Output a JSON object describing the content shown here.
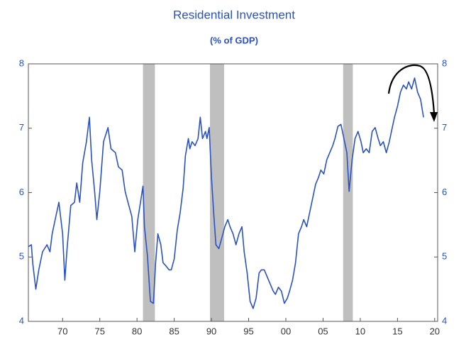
{
  "chart_data": {
    "type": "line",
    "title": "Residential Investment",
    "subtitle": "(% of GDP)",
    "color": "#2a52c4",
    "shade_color": "#bfbfbf",
    "shaded_periods": [
      [
        1980.8,
        1982.4
      ],
      [
        1989.8,
        1991.7
      ],
      [
        2007.7,
        2009.0
      ]
    ],
    "x": [
      1965.4,
      1965.8,
      1966.0,
      1966.4,
      1966.8,
      1967.3,
      1967.9,
      1968.3,
      1968.6,
      1969.0,
      1969.5,
      1970.0,
      1970.3,
      1970.6,
      1971.1,
      1971.6,
      1971.9,
      1972.3,
      1972.7,
      1973.2,
      1973.6,
      1973.9,
      1974.3,
      1974.6,
      1975.0,
      1975.5,
      1976.1,
      1976.5,
      1977.1,
      1977.5,
      1978.0,
      1978.4,
      1978.9,
      1979.3,
      1979.7,
      1980.1,
      1980.4,
      1980.8,
      1981.0,
      1981.4,
      1981.8,
      1982.2,
      1982.5,
      1982.8,
      1983.2,
      1983.5,
      1983.9,
      1984.3,
      1984.6,
      1985.0,
      1985.4,
      1985.8,
      1986.2,
      1986.5,
      1986.9,
      1987.1,
      1987.4,
      1987.8,
      1988.2,
      1988.5,
      1988.8,
      1989.2,
      1989.4,
      1989.7,
      1990.0,
      1990.3,
      1990.6,
      1991.0,
      1991.4,
      1991.8,
      1992.2,
      1992.5,
      1992.9,
      1993.3,
      1993.7,
      1994.1,
      1994.4,
      1994.8,
      1995.2,
      1995.6,
      1996.0,
      1996.4,
      1996.7,
      1997.1,
      1997.5,
      1997.9,
      1998.3,
      1998.6,
      1999.0,
      1999.4,
      1999.8,
      2000.2,
      2000.5,
      2000.9,
      2001.3,
      2001.7,
      2002.1,
      2002.4,
      2002.8,
      2003.2,
      2003.6,
      2004.0,
      2004.4,
      2004.7,
      2005.1,
      2005.5,
      2005.9,
      2006.3,
      2006.6,
      2007.0,
      2007.4,
      2007.8,
      2008.2,
      2008.5,
      2008.9,
      2009.3,
      2009.7,
      2010.1,
      2010.4,
      2010.8,
      2011.2,
      2011.6,
      2012.0,
      2012.4,
      2012.7,
      2013.1,
      2013.5,
      2013.9,
      2014.3,
      2014.6,
      2015.0,
      2015.4,
      2015.8,
      2016.2,
      2016.5,
      2016.9,
      2017.3,
      2017.7,
      2018.1,
      2018.5
    ],
    "values": [
      5.16,
      5.19,
      4.89,
      4.5,
      4.8,
      5.08,
      5.19,
      5.08,
      5.36,
      5.58,
      5.85,
      5.36,
      4.64,
      5.13,
      5.8,
      5.85,
      6.15,
      5.85,
      6.46,
      6.79,
      7.17,
      6.51,
      6.02,
      5.58,
      6.02,
      6.79,
      7.01,
      6.68,
      6.62,
      6.4,
      6.35,
      6.02,
      5.8,
      5.63,
      5.08,
      5.58,
      5.8,
      6.1,
      5.47,
      5.02,
      4.31,
      4.28,
      4.91,
      5.36,
      5.19,
      4.91,
      4.86,
      4.8,
      4.8,
      4.97,
      5.41,
      5.69,
      6.07,
      6.57,
      6.84,
      6.68,
      6.79,
      6.73,
      6.84,
      7.17,
      6.84,
      6.95,
      6.84,
      7.01,
      6.24,
      5.69,
      5.19,
      5.13,
      5.3,
      5.47,
      5.58,
      5.47,
      5.36,
      5.19,
      5.36,
      5.47,
      5.08,
      4.75,
      4.31,
      4.2,
      4.36,
      4.75,
      4.8,
      4.8,
      4.69,
      4.58,
      4.47,
      4.42,
      4.53,
      4.47,
      4.28,
      4.36,
      4.47,
      4.64,
      4.91,
      5.36,
      5.47,
      5.58,
      5.47,
      5.69,
      5.91,
      6.13,
      6.24,
      6.35,
      6.29,
      6.51,
      6.62,
      6.73,
      6.84,
      7.03,
      7.06,
      6.84,
      6.62,
      6.02,
      6.51,
      6.84,
      6.95,
      6.79,
      6.62,
      6.68,
      6.62,
      6.95,
      7.01,
      6.84,
      6.73,
      6.79,
      6.62,
      6.79,
      7.01,
      7.17,
      7.34,
      7.56,
      7.67,
      7.61,
      7.72,
      7.61,
      7.78,
      7.56,
      7.45,
      7.17
    ],
    "xlim": [
      1965.4,
      2020.4
    ],
    "xticks": [
      {
        "value": 1970,
        "label": "70"
      },
      {
        "value": 1975,
        "label": "75"
      },
      {
        "value": 1980,
        "label": "80"
      },
      {
        "value": 1985,
        "label": "85"
      },
      {
        "value": 1990,
        "label": "90"
      },
      {
        "value": 1995,
        "label": "95"
      },
      {
        "value": 2000,
        "label": "00"
      },
      {
        "value": 2005,
        "label": "05"
      },
      {
        "value": 2010,
        "label": "10"
      },
      {
        "value": 2015,
        "label": "15"
      },
      {
        "value": 2020,
        "label": "20"
      }
    ],
    "ylim": [
      4,
      8
    ],
    "yticks": [
      4,
      5,
      6,
      7,
      8
    ],
    "y2lim": [
      4,
      8
    ],
    "y2ticks": [
      4,
      5,
      6,
      7,
      8
    ]
  }
}
